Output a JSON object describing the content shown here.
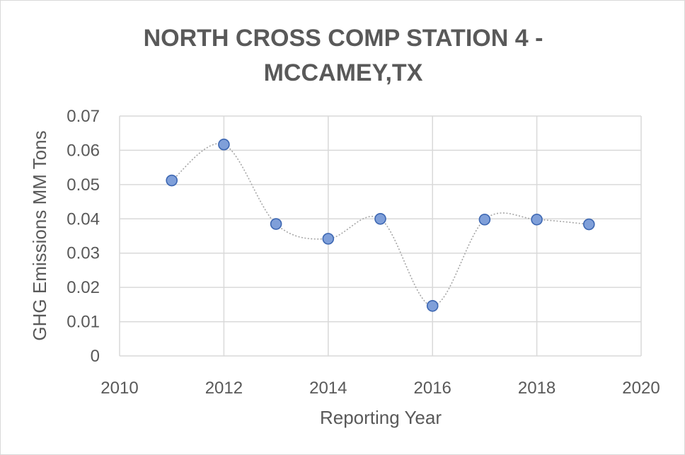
{
  "chart_data": {
    "type": "scatter",
    "title_lines": [
      "NORTH CROSS COMP STATION 4 -",
      "MCCAMEY,TX"
    ],
    "xlabel": "Reporting Year",
    "ylabel": "GHG Emissions MM Tons",
    "xlim": [
      2010,
      2020
    ],
    "ylim": [
      0,
      0.07
    ],
    "x_ticks": [
      "2010",
      "2012",
      "2014",
      "2016",
      "2018",
      "2020"
    ],
    "y_ticks": [
      "0",
      "0.01",
      "0.02",
      "0.03",
      "0.04",
      "0.05",
      "0.06",
      "0.07"
    ],
    "grid": true,
    "line_style": "smoothed dotted",
    "series": [
      {
        "x": [
          2011,
          2012,
          2013,
          2014,
          2015,
          2016,
          2017,
          2018,
          2019
        ],
        "y": [
          0.0512,
          0.0617,
          0.0385,
          0.0342,
          0.04,
          0.0146,
          0.0398,
          0.0398,
          0.0384
        ]
      }
    ],
    "colors": {
      "marker_fill": "#7f9fd9",
      "marker_stroke": "#3d67b2",
      "line": "#a6a6a6",
      "grid": "#d9d9d9",
      "text": "#595959"
    }
  }
}
